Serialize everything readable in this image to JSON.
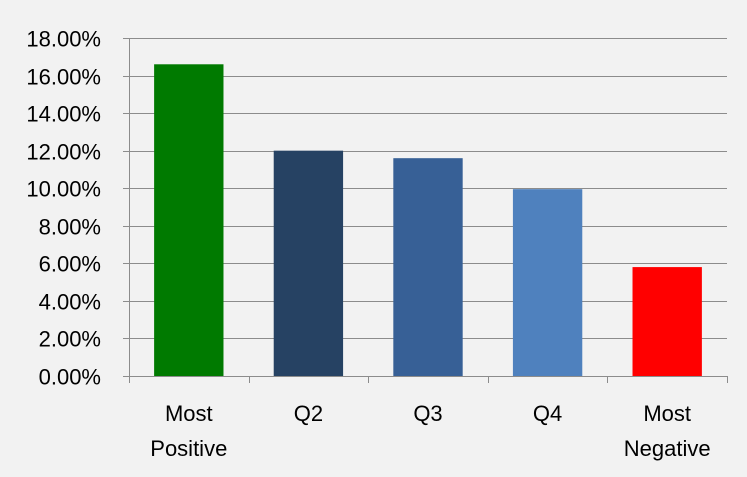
{
  "chart_data": {
    "type": "bar",
    "title": "",
    "xlabel": "",
    "ylabel": "",
    "categories": [
      "Most Positive",
      "Q2",
      "Q3",
      "Q4",
      "Most Negative"
    ],
    "category_lines": [
      [
        "Most",
        "Positive"
      ],
      [
        "Q2"
      ],
      [
        "Q3"
      ],
      [
        "Q4"
      ],
      [
        "Most",
        "Negative"
      ]
    ],
    "values": [
      16.6,
      12.0,
      11.6,
      9.95,
      5.8
    ],
    "bar_colors": [
      "#007a00",
      "#264263",
      "#376096",
      "#4f81be",
      "#ff0000"
    ],
    "ylim": [
      0,
      18
    ],
    "yticks": [
      0,
      2,
      4,
      6,
      8,
      10,
      12,
      14,
      16,
      18
    ],
    "ytick_labels": [
      "0.00%",
      "2.00%",
      "4.00%",
      "6.00%",
      "8.00%",
      "10.00%",
      "12.00%",
      "14.00%",
      "16.00%",
      "18.00%"
    ],
    "grid": true,
    "legend": "none"
  }
}
